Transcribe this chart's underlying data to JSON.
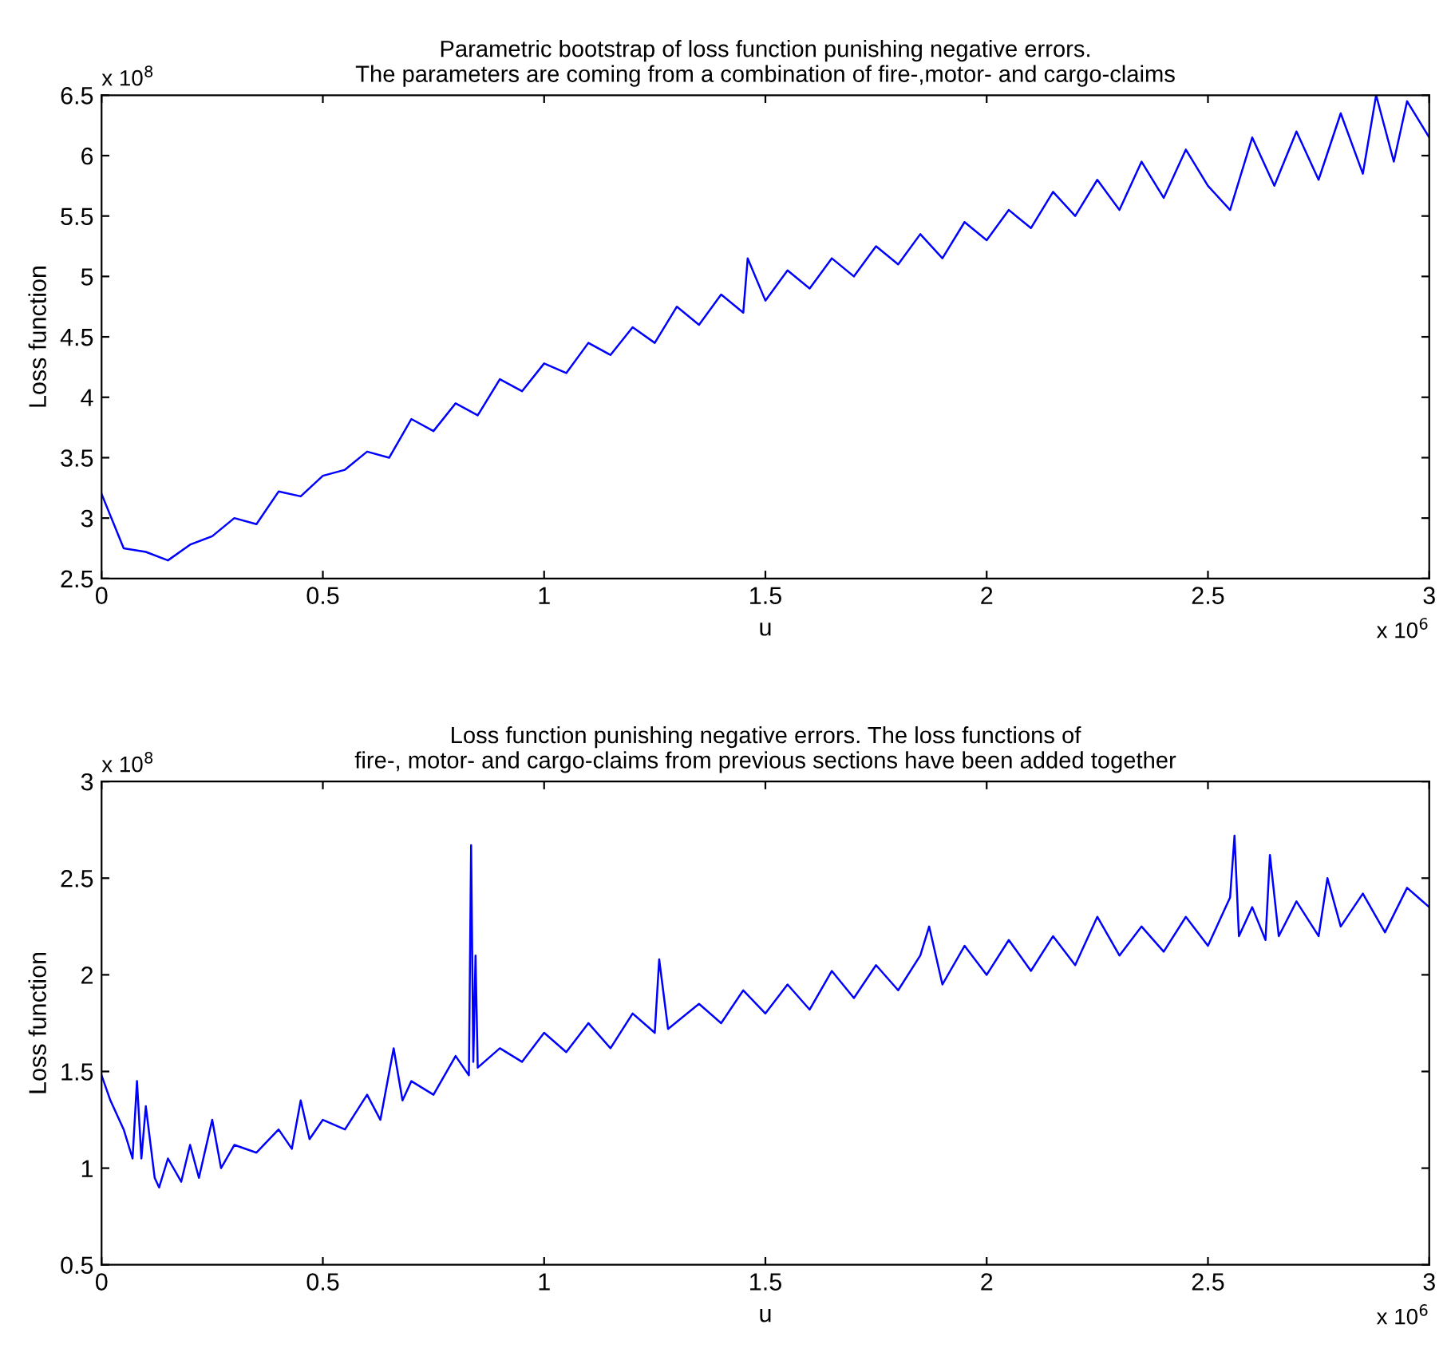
{
  "chart_data": [
    {
      "type": "line",
      "title": "Parametric bootstrap of loss function punishing negative errors.\nThe parameters are coming from a combination of fire-,motor- and cargo-claims",
      "xlabel": "u",
      "ylabel": "Loss function",
      "annotations": [
        "x 10$^{8}$",
        "x 10$^{6}$"
      ],
      "xlim": [
        0,
        3
      ],
      "xticks": [
        0,
        0.5,
        1,
        1.5,
        2,
        2.5,
        3
      ],
      "ylim": [
        2.5,
        6.5
      ],
      "yticks": [
        2.5,
        3,
        3.5,
        4,
        4.5,
        5,
        5.5,
        6,
        6.5
      ],
      "grid": false,
      "series": [
        {
          "color": "#0000ff",
          "x": [
            0,
            0.05,
            0.1,
            0.15,
            0.2,
            0.25,
            0.3,
            0.35,
            0.4,
            0.45,
            0.5,
            0.55,
            0.6,
            0.65,
            0.7,
            0.75,
            0.8,
            0.85,
            0.9,
            0.95,
            1.0,
            1.05,
            1.1,
            1.15,
            1.2,
            1.25,
            1.3,
            1.35,
            1.4,
            1.45,
            1.46,
            1.5,
            1.55,
            1.6,
            1.65,
            1.7,
            1.75,
            1.8,
            1.85,
            1.9,
            1.95,
            2.0,
            2.05,
            2.1,
            2.15,
            2.2,
            2.25,
            2.3,
            2.35,
            2.4,
            2.45,
            2.5,
            2.55,
            2.6,
            2.65,
            2.7,
            2.75,
            2.8,
            2.85,
            2.88,
            2.92,
            2.95,
            3.0
          ],
          "values": [
            3.2,
            2.75,
            2.72,
            2.65,
            2.78,
            2.85,
            3.0,
            2.95,
            3.22,
            3.18,
            3.35,
            3.4,
            3.55,
            3.5,
            3.82,
            3.72,
            3.95,
            3.85,
            4.15,
            4.05,
            4.28,
            4.2,
            4.45,
            4.35,
            4.58,
            4.45,
            4.75,
            4.6,
            4.85,
            4.7,
            5.15,
            4.8,
            5.05,
            4.9,
            5.15,
            5.0,
            5.25,
            5.1,
            5.35,
            5.15,
            5.45,
            5.3,
            5.55,
            5.4,
            5.7,
            5.5,
            5.8,
            5.55,
            5.95,
            5.65,
            6.05,
            5.75,
            5.55,
            6.15,
            5.75,
            6.2,
            5.8,
            6.35,
            5.85,
            6.5,
            5.95,
            6.45,
            6.15
          ]
        }
      ]
    },
    {
      "type": "line",
      "title": "Loss function punishing negative errors. The loss functions of\nfire-, motor- and cargo-claims from previous sections have been added together",
      "xlabel": "u",
      "ylabel": "Loss function",
      "annotations": [
        "x 10$^{8}$",
        "x 10$^{6}$"
      ],
      "xlim": [
        0,
        3
      ],
      "xticks": [
        0,
        0.5,
        1,
        1.5,
        2,
        2.5,
        3
      ],
      "ylim": [
        0.5,
        3
      ],
      "yticks": [
        0.5,
        1,
        1.5,
        2,
        2.5,
        3
      ],
      "grid": false,
      "series": [
        {
          "color": "#0000ff",
          "x": [
            0,
            0.02,
            0.05,
            0.07,
            0.08,
            0.09,
            0.1,
            0.12,
            0.13,
            0.15,
            0.18,
            0.2,
            0.22,
            0.25,
            0.27,
            0.3,
            0.35,
            0.4,
            0.43,
            0.45,
            0.47,
            0.5,
            0.55,
            0.6,
            0.63,
            0.66,
            0.68,
            0.7,
            0.75,
            0.8,
            0.83,
            0.835,
            0.84,
            0.845,
            0.85,
            0.9,
            0.95,
            1.0,
            1.05,
            1.1,
            1.15,
            1.2,
            1.25,
            1.26,
            1.28,
            1.35,
            1.4,
            1.45,
            1.5,
            1.55,
            1.6,
            1.65,
            1.7,
            1.75,
            1.8,
            1.85,
            1.87,
            1.9,
            1.95,
            2.0,
            2.05,
            2.1,
            2.15,
            2.2,
            2.25,
            2.3,
            2.35,
            2.4,
            2.45,
            2.5,
            2.55,
            2.56,
            2.57,
            2.6,
            2.63,
            2.64,
            2.66,
            2.7,
            2.75,
            2.77,
            2.8,
            2.85,
            2.9,
            2.95,
            3.0
          ],
          "values": [
            1.48,
            1.35,
            1.2,
            1.05,
            1.45,
            1.05,
            1.32,
            0.95,
            0.9,
            1.05,
            0.93,
            1.12,
            0.95,
            1.25,
            1.0,
            1.12,
            1.08,
            1.2,
            1.1,
            1.35,
            1.15,
            1.25,
            1.2,
            1.38,
            1.25,
            1.62,
            1.35,
            1.45,
            1.38,
            1.58,
            1.48,
            2.67,
            1.55,
            2.1,
            1.52,
            1.62,
            1.55,
            1.7,
            1.6,
            1.75,
            1.62,
            1.8,
            1.7,
            2.08,
            1.72,
            1.85,
            1.75,
            1.92,
            1.8,
            1.95,
            1.82,
            2.02,
            1.88,
            2.05,
            1.92,
            2.1,
            2.25,
            1.95,
            2.15,
            2.0,
            2.18,
            2.02,
            2.2,
            2.05,
            2.3,
            2.1,
            2.25,
            2.12,
            2.3,
            2.15,
            2.4,
            2.72,
            2.2,
            2.35,
            2.18,
            2.62,
            2.2,
            2.38,
            2.2,
            2.5,
            2.25,
            2.42,
            2.22,
            2.45,
            2.35
          ]
        }
      ]
    }
  ]
}
